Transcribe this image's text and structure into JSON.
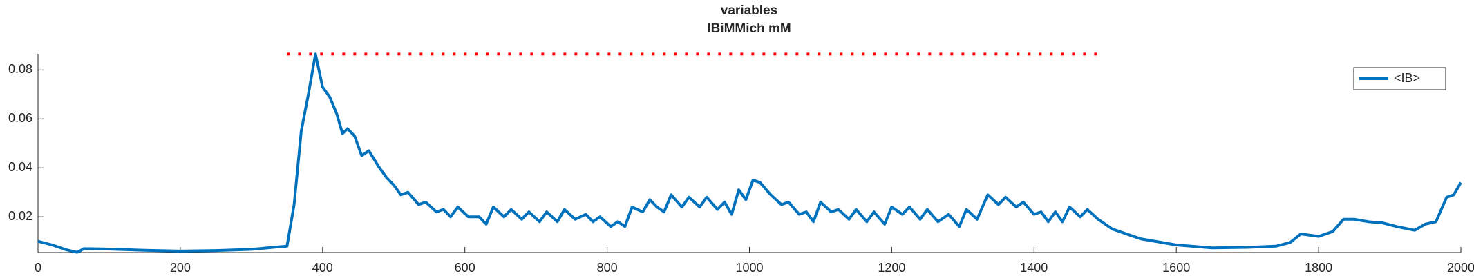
{
  "chart_data": {
    "type": "line",
    "title": "variables",
    "subtitle": "IBiMMich mM",
    "x": [
      0,
      20,
      40,
      55,
      65,
      100,
      150,
      200,
      250,
      300,
      330,
      350,
      360,
      370,
      380,
      390,
      400,
      410,
      420,
      428,
      435,
      445,
      455,
      465,
      480,
      490,
      500,
      510,
      520,
      535,
      545,
      560,
      570,
      580,
      590,
      605,
      620,
      630,
      640,
      655,
      665,
      680,
      690,
      705,
      715,
      730,
      740,
      755,
      770,
      780,
      790,
      805,
      815,
      825,
      835,
      850,
      860,
      870,
      880,
      890,
      905,
      915,
      930,
      940,
      955,
      965,
      975,
      985,
      995,
      1005,
      1015,
      1030,
      1045,
      1055,
      1070,
      1080,
      1090,
      1100,
      1115,
      1125,
      1140,
      1150,
      1165,
      1175,
      1190,
      1200,
      1215,
      1225,
      1240,
      1250,
      1265,
      1280,
      1295,
      1305,
      1320,
      1335,
      1350,
      1360,
      1375,
      1385,
      1400,
      1410,
      1420,
      1430,
      1440,
      1450,
      1465,
      1475,
      1490,
      1510,
      1550,
      1600,
      1650,
      1700,
      1740,
      1760,
      1775,
      1800,
      1820,
      1835,
      1850,
      1870,
      1890,
      1910,
      1935,
      1950,
      1965,
      1980,
      1990,
      2000
    ],
    "series": [
      {
        "name": "<IB>",
        "color": "#0072bd",
        "values": [
          0.01,
          0.0085,
          0.0065,
          0.0055,
          0.007,
          0.0068,
          0.0063,
          0.006,
          0.0062,
          0.0067,
          0.0075,
          0.008,
          0.025,
          0.055,
          0.07,
          0.0865,
          0.073,
          0.069,
          0.062,
          0.054,
          0.056,
          0.053,
          0.045,
          0.047,
          0.04,
          0.036,
          0.033,
          0.029,
          0.03,
          0.025,
          0.026,
          0.022,
          0.023,
          0.02,
          0.024,
          0.02,
          0.02,
          0.017,
          0.024,
          0.02,
          0.023,
          0.019,
          0.022,
          0.018,
          0.022,
          0.018,
          0.023,
          0.019,
          0.021,
          0.018,
          0.02,
          0.016,
          0.018,
          0.016,
          0.024,
          0.022,
          0.027,
          0.024,
          0.022,
          0.029,
          0.024,
          0.028,
          0.024,
          0.028,
          0.023,
          0.026,
          0.021,
          0.031,
          0.027,
          0.035,
          0.034,
          0.029,
          0.025,
          0.026,
          0.021,
          0.022,
          0.018,
          0.026,
          0.022,
          0.023,
          0.019,
          0.023,
          0.018,
          0.022,
          0.017,
          0.024,
          0.021,
          0.024,
          0.019,
          0.023,
          0.018,
          0.021,
          0.016,
          0.023,
          0.019,
          0.029,
          0.025,
          0.028,
          0.024,
          0.026,
          0.021,
          0.022,
          0.018,
          0.022,
          0.018,
          0.024,
          0.02,
          0.023,
          0.019,
          0.015,
          0.011,
          0.0085,
          0.0073,
          0.0075,
          0.008,
          0.0095,
          0.013,
          0.012,
          0.014,
          0.019,
          0.019,
          0.018,
          0.0175,
          0.016,
          0.0145,
          0.017,
          0.018,
          0.028,
          0.029,
          0.034
        ]
      }
    ],
    "reference_line": {
      "value": 0.0865,
      "x": [
        350,
        1490
      ],
      "color": "#ff0000"
    },
    "xlim": [
      0,
      2000
    ],
    "xticks": [
      0,
      200,
      400,
      600,
      800,
      1000,
      1200,
      1400,
      1600,
      1800,
      2000
    ],
    "ylim": [
      0.0054,
      0.0866
    ],
    "yticks": [
      0.02,
      0.04,
      0.06,
      0.08
    ],
    "legend": "upper right"
  }
}
